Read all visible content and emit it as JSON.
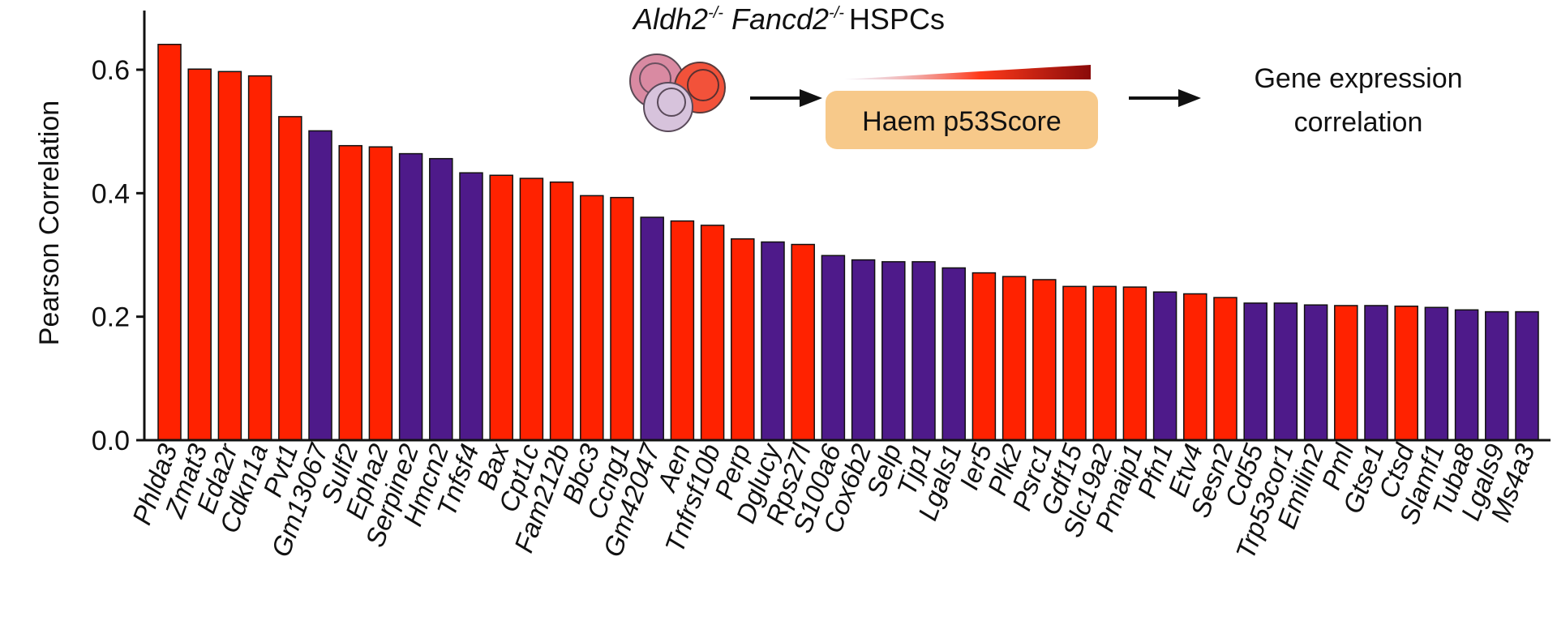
{
  "chart_data": {
    "type": "bar",
    "ylabel": "Pearson Correlation",
    "ylim": [
      0,
      0.7
    ],
    "yticks": [
      "0.0",
      "0.2",
      "0.4",
      "0.6"
    ],
    "ytick_values": [
      0.0,
      0.2,
      0.4,
      0.6
    ],
    "categories": [
      "Phlda3",
      "Zmat3",
      "Eda2r",
      "Cdkn1a",
      "Pvt1",
      "Gm13067",
      "Sulf2",
      "Epha2",
      "Serpine2",
      "Hmcn2",
      "Tnfsf4",
      "Bax",
      "Cpt1c",
      "Fam212b",
      "Bbc3",
      "Ccng1",
      "Gm42047",
      "Aen",
      "Tnfrsf10b",
      "Perp",
      "Dglucy",
      "Rps27l",
      "S100a6",
      "Cox6b2",
      "Selp",
      "Tjp1",
      "Lgals1",
      "Ier5",
      "Plk2",
      "Psrc1",
      "Gdf15",
      "Slc19a2",
      "Pmaip1",
      "Pfn1",
      "Etv4",
      "Sesn2",
      "Cd55",
      "Trp53cor1",
      "Emilin2",
      "Pml",
      "Gtse1",
      "Ctsd",
      "Slamf1",
      "Tuba8",
      "Lgals9",
      "Ms4a3"
    ],
    "values": [
      0.641,
      0.601,
      0.597,
      0.59,
      0.524,
      0.501,
      0.477,
      0.475,
      0.464,
      0.456,
      0.433,
      0.429,
      0.424,
      0.418,
      0.396,
      0.393,
      0.361,
      0.355,
      0.348,
      0.326,
      0.321,
      0.317,
      0.299,
      0.292,
      0.289,
      0.289,
      0.279,
      0.271,
      0.265,
      0.26,
      0.249,
      0.249,
      0.248,
      0.24,
      0.237,
      0.231,
      0.222,
      0.222,
      0.219,
      0.218,
      0.218,
      0.217,
      0.215,
      0.211,
      0.208,
      0.208
    ],
    "bar_colors": [
      "#ff2200",
      "#ff2200",
      "#ff2200",
      "#ff2200",
      "#ff2200",
      "#4e1a8a",
      "#ff2200",
      "#ff2200",
      "#4e1a8a",
      "#4e1a8a",
      "#4e1a8a",
      "#ff2200",
      "#ff2200",
      "#ff2200",
      "#ff2200",
      "#ff2200",
      "#4e1a8a",
      "#ff2200",
      "#ff2200",
      "#ff2200",
      "#4e1a8a",
      "#ff2200",
      "#4e1a8a",
      "#4e1a8a",
      "#4e1a8a",
      "#4e1a8a",
      "#4e1a8a",
      "#ff2200",
      "#ff2200",
      "#ff2200",
      "#ff2200",
      "#ff2200",
      "#ff2200",
      "#4e1a8a",
      "#ff2200",
      "#ff2200",
      "#4e1a8a",
      "#4e1a8a",
      "#4e1a8a",
      "#ff2200",
      "#4e1a8a",
      "#ff2200",
      "#4e1a8a",
      "#4e1a8a",
      "#4e1a8a",
      "#4e1a8a"
    ],
    "colors": {
      "red": "#ff2200",
      "purple": "#4e1a8a",
      "badge": "#f7c98a"
    },
    "inset": {
      "title_gene1": "Aldh2",
      "title_sup1": "-/-",
      "title_gene2": "Fancd2",
      "title_sup2": "-/-",
      "title_cells": "HSPCs",
      "score_label": "Haem p53Score",
      "result_line1": "Gene expression",
      "result_line2": "correlation"
    }
  }
}
